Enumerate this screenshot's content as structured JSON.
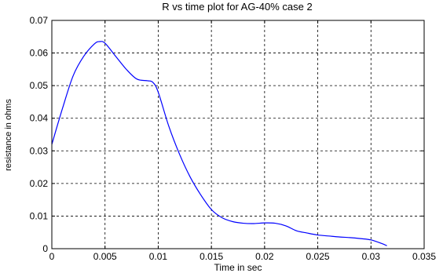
{
  "chart_data": {
    "type": "line",
    "title": "R vs time plot for AG-40% case 2",
    "xlabel": "Time in sec",
    "ylabel": "resistance in ohms",
    "xlim": [
      0,
      0.035
    ],
    "ylim": [
      0,
      0.07
    ],
    "grid": true,
    "x_ticks": [
      "0",
      "0.005",
      "0.01",
      "0.015",
      "0.02",
      "0.025",
      "0.03",
      "0.035"
    ],
    "y_ticks": [
      "0",
      "0.01",
      "0.02",
      "0.03",
      "0.04",
      "0.05",
      "0.06",
      "0.07"
    ],
    "series": [
      {
        "color": "#0000ff",
        "x": [
          0,
          0.001,
          0.002,
          0.003,
          0.004,
          0.0045,
          0.005,
          0.006,
          0.007,
          0.008,
          0.009,
          0.0095,
          0.01,
          0.011,
          0.012,
          0.013,
          0.014,
          0.015,
          0.016,
          0.017,
          0.018,
          0.019,
          0.02,
          0.021,
          0.022,
          0.023,
          0.024,
          0.025,
          0.026,
          0.027,
          0.028,
          0.029,
          0.03,
          0.031,
          0.0315
        ],
        "y": [
          0.032,
          0.043,
          0.053,
          0.059,
          0.0628,
          0.0635,
          0.063,
          0.059,
          0.055,
          0.052,
          0.0515,
          0.051,
          0.048,
          0.0375,
          0.029,
          0.022,
          0.0165,
          0.012,
          0.0095,
          0.0083,
          0.0078,
          0.0077,
          0.0079,
          0.0078,
          0.007,
          0.0055,
          0.0048,
          0.0042,
          0.0039,
          0.0036,
          0.0034,
          0.0031,
          0.0027,
          0.0016,
          0.0009
        ]
      }
    ]
  }
}
